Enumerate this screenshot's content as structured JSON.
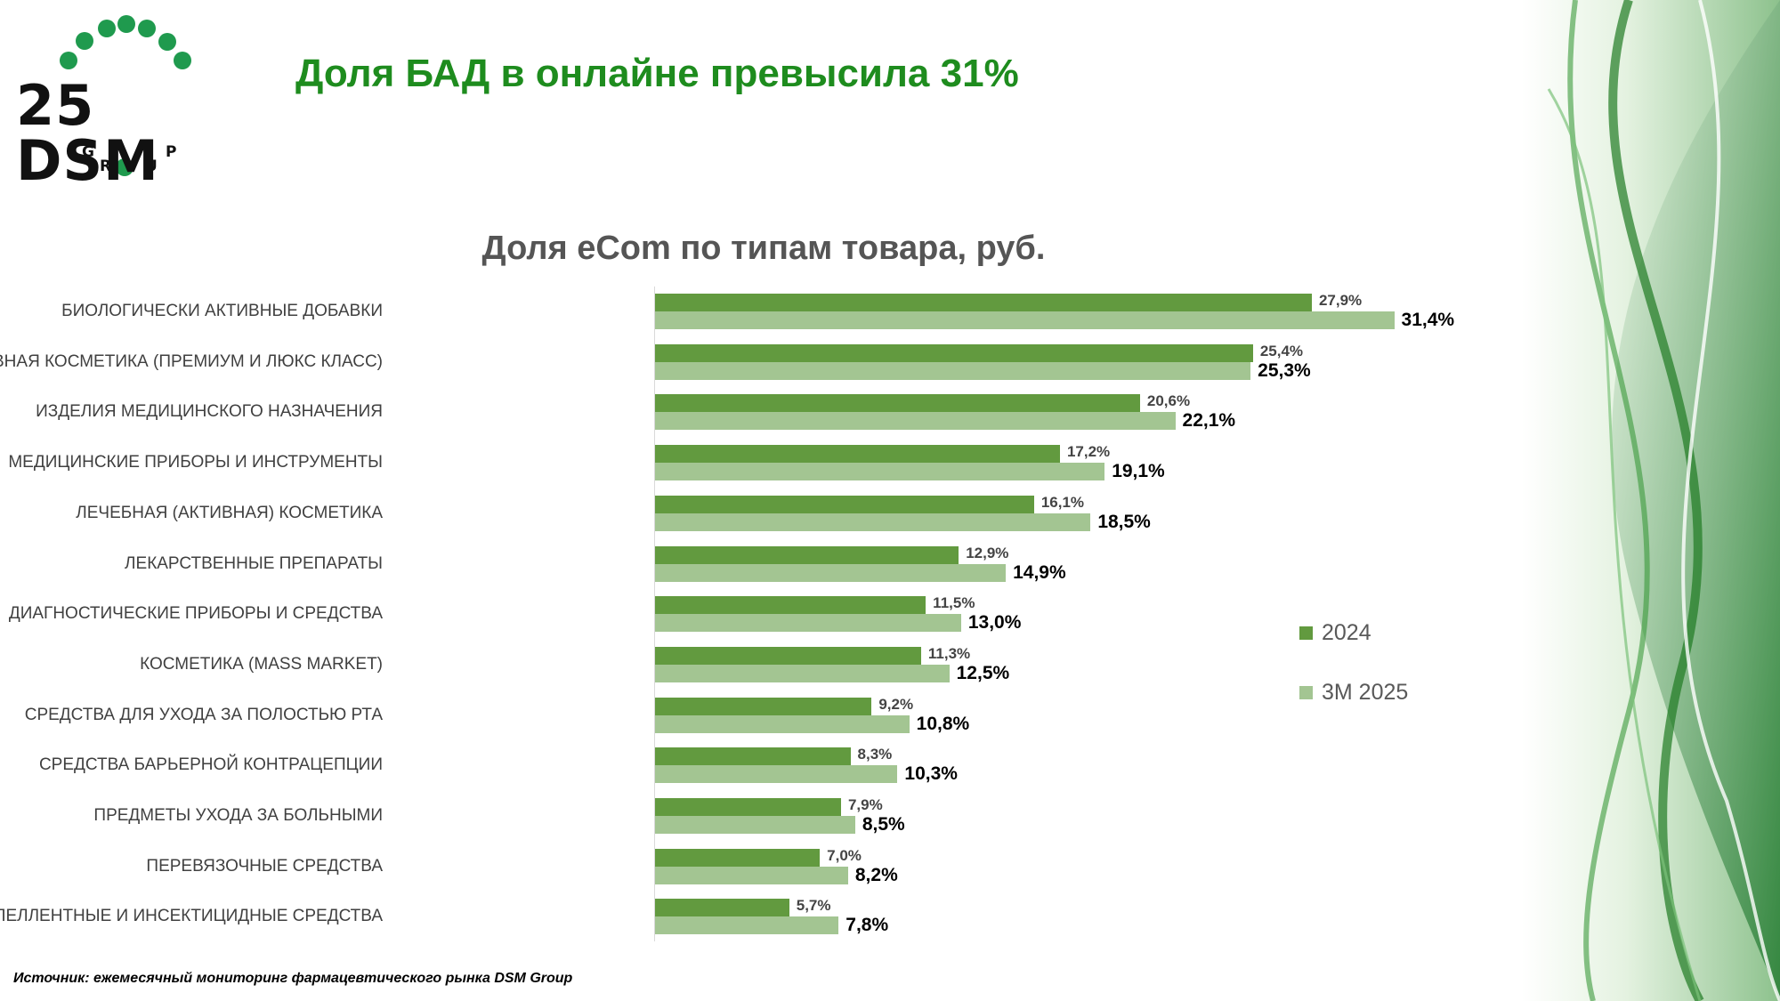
{
  "header": {
    "title": "Доля БАД в онлайне превысила 31%"
  },
  "logo": {
    "text": "25 DSM",
    "subtext": "GROUP"
  },
  "chart_data": {
    "type": "bar",
    "orientation": "horizontal",
    "title": "Доля eCom по типам товара, руб.",
    "categories": [
      "БИОЛОГИЧЕСКИ АКТИВНЫЕ ДОБАВКИ",
      "СЕЛЕКТИВНАЯ КОСМЕТИКА (ПРЕМИУМ И ЛЮКС КЛАСС)",
      "ИЗДЕЛИЯ МЕДИЦИНСКОГО НАЗНАЧЕНИЯ",
      "МЕДИЦИНСКИЕ ПРИБОРЫ И ИНСТРУМЕНТЫ",
      "ЛЕЧЕБНАЯ (АКТИВНАЯ) КОСМЕТИКА",
      "ЛЕКАРСТВЕННЫЕ ПРЕПАРАТЫ",
      "ДИАГНОСТИЧЕСКИЕ ПРИБОРЫ И СРЕДСТВА",
      "КОСМЕТИКА (MASS MARKET)",
      "СРЕДСТВА ДЛЯ УХОДА ЗА ПОЛОСТЬЮ РТА",
      "СРЕДСТВА БАРЬЕРНОЙ КОНТРАЦЕПЦИИ",
      "ПРЕДМЕТЫ УХОДА ЗА БОЛЬНЫМИ",
      "ПЕРЕВЯЗОЧНЫЕ СРЕДСТВА",
      "РЕПЕЛЛЕНТНЫЕ И ИНСЕКТИЦИДНЫЕ СРЕДСТВА"
    ],
    "series": [
      {
        "name": "2024",
        "color": "#629a3f",
        "values": [
          27.9,
          25.4,
          20.6,
          17.2,
          16.1,
          12.9,
          11.5,
          11.3,
          9.2,
          8.3,
          7.9,
          7.0,
          5.7
        ],
        "labels": [
          "27,9%",
          "25,4%",
          "20,6%",
          "17,2%",
          "16,1%",
          "12,9%",
          "11,5%",
          "11,3%",
          "9,2%",
          "8,3%",
          "7,9%",
          "7,0%",
          "5,7%"
        ]
      },
      {
        "name": "3М 2025",
        "color": "#a3c592",
        "values": [
          31.4,
          25.3,
          22.1,
          19.1,
          18.5,
          14.9,
          13.0,
          12.5,
          10.8,
          10.3,
          8.5,
          8.2,
          7.8
        ],
        "labels": [
          "31,4%",
          "25,3%",
          "22,1%",
          "19,1%",
          "18,5%",
          "14,9%",
          "13,0%",
          "12,5%",
          "10,8%",
          "10,3%",
          "8,5%",
          "8,2%",
          "7,8%"
        ]
      }
    ],
    "xlim": [
      0,
      35
    ],
    "grid": false,
    "legend_position": "right"
  },
  "footer": {
    "source": "Источник: ежемесячный мониторинг фармацевтического рынка DSM Group"
  }
}
